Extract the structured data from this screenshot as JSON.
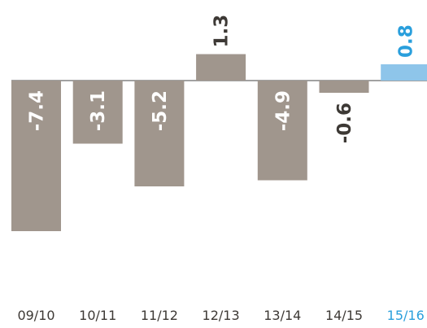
{
  "chart_data": {
    "type": "bar",
    "categories": [
      "09/10",
      "10/11",
      "11/12",
      "12/13",
      "13/14",
      "14/15",
      "15/16"
    ],
    "values": [
      -7.4,
      -3.1,
      -5.2,
      1.3,
      -4.9,
      -0.6,
      0.8
    ],
    "colors": [
      "#a0968d",
      "#a0968d",
      "#a0968d",
      "#a0968d",
      "#a0968d",
      "#a0968d",
      "#8ec5ea"
    ],
    "label_colors": [
      "#3d3935",
      "#3d3935",
      "#3d3935",
      "#3d3935",
      "#3d3935",
      "#3d3935",
      "#2a9fdc"
    ]
  }
}
